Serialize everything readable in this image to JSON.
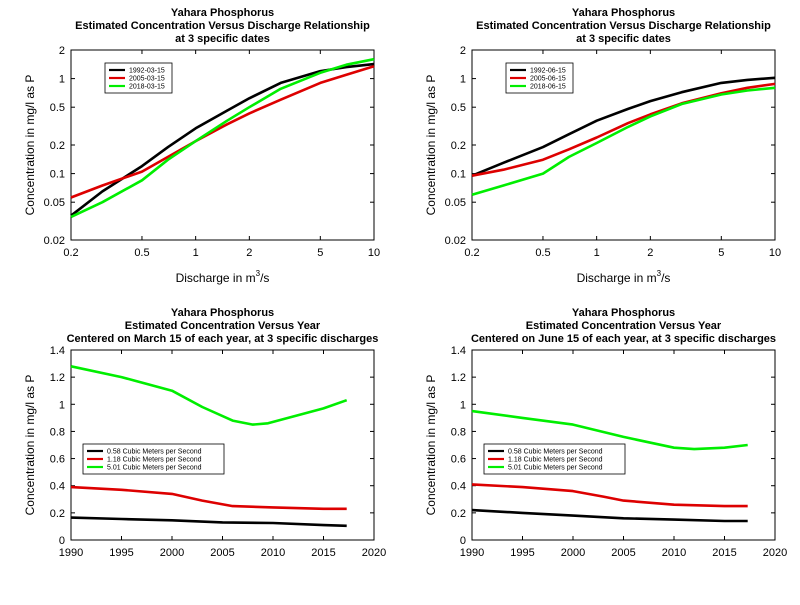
{
  "chart_data": [
    {
      "type": "line",
      "title": [
        "Yahara    Phosphorus",
        "Estimated Concentration Versus Discharge Relationship",
        "at 3 specific dates"
      ],
      "xlabel": "Discharge in m",
      "xlabel_sup": "3",
      "xlabel_tail": "/s",
      "ylabel": "Concentration in mg/l as P",
      "xscale": "log",
      "yscale": "log",
      "xlim": [
        0.2,
        10
      ],
      "ylim": [
        0.02,
        2
      ],
      "xticks": [
        0.2,
        0.5,
        1,
        2,
        5,
        10
      ],
      "xtick_labels": [
        "0.2",
        "0.5",
        "1",
        "2",
        "5",
        "10"
      ],
      "yticks": [
        0.02,
        0.05,
        0.1,
        0.2,
        0.5,
        1,
        2
      ],
      "ytick_labels": [
        "0.02",
        "0.05",
        "0.1",
        "0.2",
        "0.5",
        "1",
        "2"
      ],
      "legend": "top-left",
      "series": [
        {
          "name": "1992-03-15",
          "color": "#000000",
          "x": [
            0.2,
            0.3,
            0.5,
            0.7,
            1,
            1.5,
            2,
            3,
            5,
            7,
            10
          ],
          "y": [
            0.036,
            0.065,
            0.12,
            0.19,
            0.3,
            0.46,
            0.62,
            0.9,
            1.2,
            1.32,
            1.42
          ]
        },
        {
          "name": "2005-03-15",
          "color": "#dd0000",
          "x": [
            0.2,
            0.3,
            0.5,
            0.7,
            1,
            1.5,
            2,
            3,
            5,
            7,
            10
          ],
          "y": [
            0.056,
            0.075,
            0.105,
            0.15,
            0.22,
            0.33,
            0.43,
            0.6,
            0.9,
            1.1,
            1.35
          ]
        },
        {
          "name": "2018-03-15",
          "color": "#00ee00",
          "x": [
            0.2,
            0.3,
            0.5,
            0.7,
            1,
            1.5,
            2,
            3,
            5,
            7,
            10
          ],
          "y": [
            0.035,
            0.05,
            0.085,
            0.14,
            0.22,
            0.36,
            0.5,
            0.78,
            1.15,
            1.4,
            1.6
          ]
        }
      ]
    },
    {
      "type": "line",
      "title": [
        "Yahara    Phosphorus",
        "Estimated Concentration Versus Discharge Relationship",
        "at 3 specific dates"
      ],
      "xlabel": "Discharge in m",
      "xlabel_sup": "3",
      "xlabel_tail": "/s",
      "ylabel": "Concentration in mg/l as P",
      "xscale": "log",
      "yscale": "log",
      "xlim": [
        0.2,
        10
      ],
      "ylim": [
        0.02,
        2
      ],
      "xticks": [
        0.2,
        0.5,
        1,
        2,
        5,
        10
      ],
      "xtick_labels": [
        "0.2",
        "0.5",
        "1",
        "2",
        "5",
        "10"
      ],
      "yticks": [
        0.02,
        0.05,
        0.1,
        0.2,
        0.5,
        1,
        2
      ],
      "ytick_labels": [
        "0.02",
        "0.05",
        "0.1",
        "0.2",
        "0.5",
        "1",
        "2"
      ],
      "legend": "top-left",
      "series": [
        {
          "name": "1992-06-15",
          "color": "#000000",
          "x": [
            0.2,
            0.3,
            0.5,
            0.7,
            1,
            1.5,
            2,
            3,
            5,
            7,
            10
          ],
          "y": [
            0.095,
            0.13,
            0.19,
            0.26,
            0.36,
            0.48,
            0.58,
            0.72,
            0.9,
            0.97,
            1.02
          ]
        },
        {
          "name": "2005-06-15",
          "color": "#dd0000",
          "x": [
            0.2,
            0.3,
            0.5,
            0.7,
            1,
            1.5,
            2,
            3,
            5,
            7,
            10
          ],
          "y": [
            0.095,
            0.11,
            0.14,
            0.18,
            0.24,
            0.34,
            0.42,
            0.55,
            0.7,
            0.8,
            0.88
          ]
        },
        {
          "name": "2018-06-15",
          "color": "#00ee00",
          "x": [
            0.2,
            0.3,
            0.5,
            0.7,
            1,
            1.5,
            2,
            3,
            5,
            7,
            10
          ],
          "y": [
            0.06,
            0.075,
            0.1,
            0.15,
            0.21,
            0.31,
            0.4,
            0.54,
            0.68,
            0.75,
            0.8
          ]
        }
      ]
    },
    {
      "type": "line",
      "title": [
        "Yahara    Phosphorus",
        "Estimated Concentration Versus Year",
        "Centered on March 15 of each year, at 3 specific discharges"
      ],
      "xlabel": "",
      "ylabel": "Concentration in mg/l as P",
      "xscale": "linear",
      "yscale": "linear",
      "xlim": [
        1990,
        2020
      ],
      "ylim": [
        0,
        1.4
      ],
      "xticks": [
        1990,
        1995,
        2000,
        2005,
        2010,
        2015,
        2020
      ],
      "xtick_labels": [
        "1990",
        "1995",
        "2000",
        "2005",
        "2010",
        "2015",
        "2020"
      ],
      "yticks": [
        0,
        0.2,
        0.4,
        0.6,
        0.8,
        1,
        1.2,
        1.4
      ],
      "ytick_labels": [
        "0",
        "0.2",
        "0.4",
        "0.6",
        "0.8",
        "1",
        "1.2",
        "1.4"
      ],
      "legend": "bottom-left",
      "series": [
        {
          "name": "0.58 Cubic Meters per Second",
          "color": "#000000",
          "x": [
            1990,
            1995,
            2000,
            2005,
            2010,
            2015,
            2017.3
          ],
          "y": [
            0.165,
            0.155,
            0.145,
            0.13,
            0.125,
            0.11,
            0.105
          ]
        },
        {
          "name": "1.18 Cubic Meters per Second",
          "color": "#dd0000",
          "x": [
            1990,
            1995,
            2000,
            2003,
            2006,
            2010,
            2015,
            2017.3
          ],
          "y": [
            0.39,
            0.37,
            0.34,
            0.29,
            0.25,
            0.24,
            0.23,
            0.23
          ]
        },
        {
          "name": "5.01 Cubic Meters per Second",
          "color": "#00ee00",
          "x": [
            1990,
            1995,
            2000,
            2003,
            2006,
            2008,
            2009.5,
            2012,
            2015,
            2017.3
          ],
          "y": [
            1.28,
            1.2,
            1.1,
            0.98,
            0.88,
            0.85,
            0.86,
            0.91,
            0.97,
            1.03
          ]
        }
      ]
    },
    {
      "type": "line",
      "title": [
        "Yahara    Phosphorus",
        "Estimated Concentration Versus Year",
        "Centered on June 15 of each year, at 3 specific discharges"
      ],
      "xlabel": "",
      "ylabel": "Concentration in mg/l as P",
      "xscale": "linear",
      "yscale": "linear",
      "xlim": [
        1990,
        2020
      ],
      "ylim": [
        0,
        1.4
      ],
      "xticks": [
        1990,
        1995,
        2000,
        2005,
        2010,
        2015,
        2020
      ],
      "xtick_labels": [
        "1990",
        "1995",
        "2000",
        "2005",
        "2010",
        "2015",
        "2020"
      ],
      "yticks": [
        0,
        0.2,
        0.4,
        0.6,
        0.8,
        1,
        1.2,
        1.4
      ],
      "ytick_labels": [
        "0",
        "0.2",
        "0.4",
        "0.6",
        "0.8",
        "1",
        "1.2",
        "1.4"
      ],
      "legend": "bottom-left",
      "series": [
        {
          "name": "0.58 Cubic Meters per Second",
          "color": "#000000",
          "x": [
            1990,
            1995,
            2000,
            2005,
            2010,
            2015,
            2017.3
          ],
          "y": [
            0.22,
            0.2,
            0.18,
            0.16,
            0.15,
            0.14,
            0.14
          ]
        },
        {
          "name": "1.18 Cubic Meters per Second",
          "color": "#dd0000",
          "x": [
            1990,
            1995,
            2000,
            2003,
            2005,
            2010,
            2015,
            2017.3
          ],
          "y": [
            0.41,
            0.39,
            0.36,
            0.32,
            0.29,
            0.26,
            0.25,
            0.25
          ]
        },
        {
          "name": "5.01 Cubic Meters per Second",
          "color": "#00ee00",
          "x": [
            1990,
            1995,
            2000,
            2005,
            2010,
            2012,
            2015,
            2017.3
          ],
          "y": [
            0.95,
            0.9,
            0.85,
            0.76,
            0.68,
            0.67,
            0.68,
            0.7
          ]
        }
      ]
    }
  ]
}
